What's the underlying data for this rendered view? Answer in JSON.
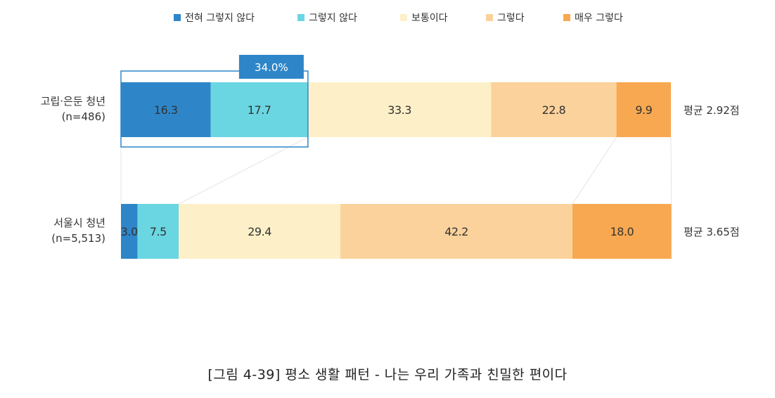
{
  "chart_data": {
    "type": "stacked-bar-100-horizontal",
    "legend_position": "top",
    "categories": [
      "고립·은둔 청년|(n=486)",
      "서울시 청년|(n=5,513)"
    ],
    "series": [
      {
        "name": "전혀 그렇지 않다",
        "color": "#2E86C8",
        "values": [
          16.3,
          3.0
        ]
      },
      {
        "name": "그렇지 않다",
        "color": "#6AD6E2",
        "values": [
          17.7,
          7.5
        ]
      },
      {
        "name": "보통이다",
        "color": "#FDF0C8",
        "values": [
          33.3,
          29.4
        ]
      },
      {
        "name": "그렇다",
        "color": "#FBD29B",
        "values": [
          22.8,
          42.2
        ]
      },
      {
        "name": "매우 그렇다",
        "color": "#F8A850",
        "values": [
          9.9,
          18.0
        ]
      }
    ],
    "averages": [
      "평균 2.92점",
      "평균 3.65점"
    ],
    "callout": {
      "label": "34.0%",
      "row": 0,
      "series_span": [
        0,
        1
      ],
      "value": 34.0,
      "color": "#2E86C8"
    }
  },
  "caption": "[그림 4-39] 평소 생활 패턴 - 나는 우리 가족과 친밀한 편이다"
}
